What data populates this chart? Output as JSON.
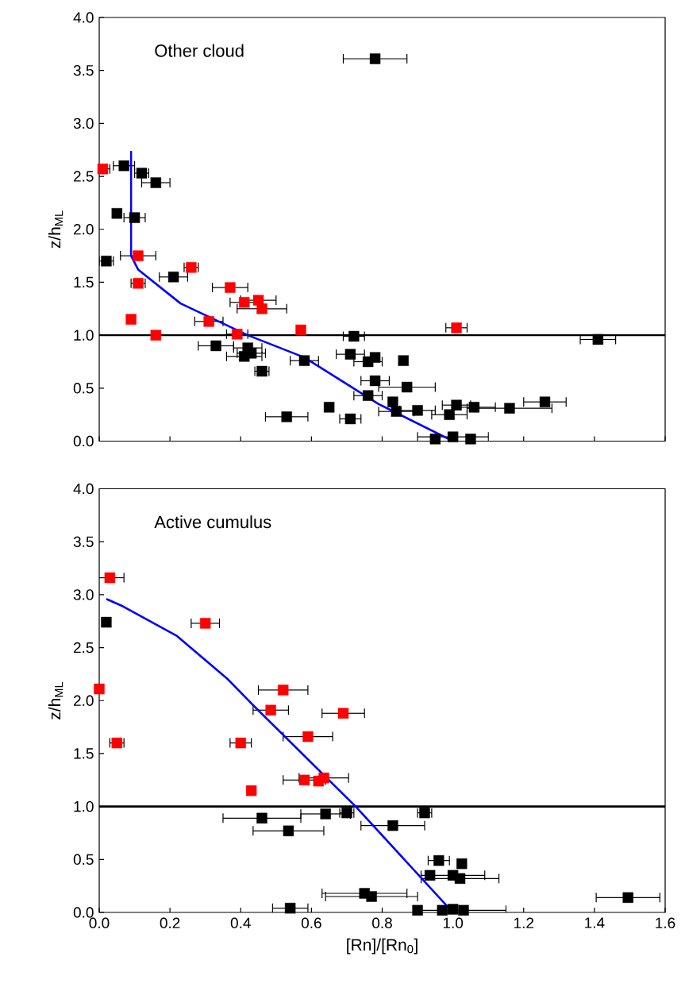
{
  "chart_data": [
    {
      "type": "scatter",
      "annotations": [
        "Other cloud"
      ],
      "ylabel": "z/h$_{ML}$",
      "tick_labels": "y",
      "xlim": [
        0,
        1.6
      ],
      "xticks": [
        {
          "value": 0,
          "label": null
        },
        {
          "value": 0.2,
          "label": null
        },
        {
          "value": 0.4,
          "label": null
        },
        {
          "value": 0.6,
          "label": null
        },
        {
          "value": 0.8,
          "label": null
        },
        {
          "value": 1.0,
          "label": null
        },
        {
          "value": 1.2,
          "label": null
        },
        {
          "value": 1.4,
          "label": null
        },
        {
          "value": 1.6,
          "label": null
        }
      ],
      "ylim": [
        0,
        4
      ],
      "yticks": [
        {
          "value": 0,
          "label": "0.0"
        },
        {
          "value": 0.5,
          "label": "0.5"
        },
        {
          "value": 1.0,
          "label": "1.0"
        },
        {
          "value": 1.5,
          "label": "1.5"
        },
        {
          "value": 2.0,
          "label": "2.0"
        },
        {
          "value": 2.5,
          "label": "2.5"
        },
        {
          "value": 3.0,
          "label": "3.0"
        },
        {
          "value": 3.5,
          "label": "3.5"
        },
        {
          "value": 4.0,
          "label": "4.0"
        }
      ],
      "ref_lines": [
        {
          "axis": "y",
          "value": 1.0,
          "color": "#000000"
        }
      ],
      "series": [
        {
          "type": "scatter",
          "marker": "square",
          "color": "#000000",
          "x": [
            0.78,
            0.07,
            0.12,
            0.16,
            0.05,
            0.1,
            0.02,
            0.21,
            0.33,
            0.42,
            0.41,
            0.43,
            0.46,
            0.58,
            0.53,
            0.65,
            0.71,
            0.72,
            0.71,
            0.76,
            0.78,
            0.78,
            0.76,
            1.41,
            0.86,
            0.87,
            1.26,
            1.16,
            1.06,
            1.01,
            0.9,
            0.83,
            0.84,
            0.99,
            0.95,
            1.0,
            1.05
          ],
          "values": [
            3.61,
            2.6,
            2.53,
            2.44,
            2.15,
            2.11,
            1.7,
            1.55,
            0.9,
            0.88,
            0.8,
            0.83,
            0.66,
            0.76,
            0.23,
            0.32,
            0.21,
            0.99,
            0.82,
            0.75,
            0.79,
            0.57,
            0.43,
            0.96,
            0.76,
            0.51,
            0.37,
            0.31,
            0.32,
            0.34,
            0.29,
            0.37,
            0.28,
            0.25,
            0.02,
            0.04,
            0.02
          ],
          "xerrors": [
            0.09,
            0.03,
            0.02,
            0.04,
            null,
            0.03,
            0.02,
            0.04,
            0.05,
            0.04,
            0.05,
            0.04,
            0.02,
            0.04,
            0.06,
            null,
            0.03,
            0.03,
            0.04,
            0.04,
            null,
            0.04,
            0.04,
            0.05,
            null,
            0.08,
            0.06,
            0.12,
            0.06,
            0.04,
            0.05,
            null,
            0.05,
            0.05,
            null,
            0.1,
            null
          ]
        },
        {
          "type": "scatter",
          "marker": "square",
          "color": "#ff0000",
          "x": [
            0.01,
            0.11,
            0.26,
            0.11,
            0.37,
            0.41,
            0.45,
            0.46,
            0.09,
            0.31,
            0.16,
            0.39,
            0.57,
            1.01
          ],
          "values": [
            2.57,
            1.75,
            1.64,
            1.49,
            1.45,
            1.31,
            1.33,
            1.25,
            1.15,
            1.13,
            1.0,
            1.01,
            1.05,
            1.07
          ],
          "xerrors": [
            0.02,
            0.05,
            0.02,
            0.02,
            0.05,
            0.04,
            0.05,
            0.07,
            null,
            0.04,
            null,
            0.03,
            null,
            0.03
          ]
        },
        {
          "type": "line",
          "marker": "none",
          "color": "#0000ff",
          "x": [
            1.0,
            0.79,
            0.58,
            0.42,
            0.23,
            0.11,
            0.09,
            0.09
          ],
          "values": [
            0.0,
            0.35,
            0.79,
            1.0,
            1.3,
            1.62,
            1.75,
            2.74
          ]
        }
      ]
    },
    {
      "type": "scatter",
      "annotations": [
        "Active cumulus"
      ],
      "ylabel": "z/h$_{ML}$",
      "xlabel": "[Rn]/[Rn$_{0}$]",
      "xlim": [
        0,
        1.6
      ],
      "xticks": [
        {
          "value": 0,
          "label": "0.0"
        },
        {
          "value": 0.2,
          "label": "0.2"
        },
        {
          "value": 0.4,
          "label": "0.4"
        },
        {
          "value": 0.6,
          "label": "0.6"
        },
        {
          "value": 0.8,
          "label": "0.8"
        },
        {
          "value": 1.0,
          "label": "1.0"
        },
        {
          "value": 1.2,
          "label": "1.2"
        },
        {
          "value": 1.4,
          "label": "1.4"
        },
        {
          "value": 1.6,
          "label": "1.6"
        }
      ],
      "ylim": [
        0,
        4
      ],
      "yticks": [
        {
          "value": 0,
          "label": "0.0"
        },
        {
          "value": 0.5,
          "label": "0.5"
        },
        {
          "value": 1.0,
          "label": "1.0"
        },
        {
          "value": 1.5,
          "label": "1.5"
        },
        {
          "value": 2.0,
          "label": "2.0"
        },
        {
          "value": 2.5,
          "label": "2.5"
        },
        {
          "value": 3.0,
          "label": "3.0"
        },
        {
          "value": 3.5,
          "label": "3.5"
        },
        {
          "value": 4.0,
          "label": "4.0"
        }
      ],
      "ref_lines": [
        {
          "axis": "y",
          "value": 1.0,
          "color": "#000000"
        }
      ],
      "series": [
        {
          "type": "scatter",
          "marker": "square",
          "color": "#000000",
          "x": [
            0.02,
            0.92,
            0.7,
            0.64,
            0.46,
            0.83,
            0.535,
            0.96,
            1.025,
            0.935,
            1.0,
            1.02,
            0.75,
            0.77,
            0.54,
            0.9,
            0.97,
            1.0,
            1.03,
            1.495
          ],
          "values": [
            2.74,
            0.94,
            0.94,
            0.93,
            0.89,
            0.82,
            0.77,
            0.49,
            0.46,
            0.35,
            0.35,
            0.32,
            0.18,
            0.15,
            0.04,
            0.02,
            0.02,
            0.03,
            0.02,
            0.14
          ],
          "xerrors": [
            null,
            0.02,
            0.02,
            0.07,
            0.11,
            0.09,
            0.1,
            0.03,
            null,
            null,
            0.09,
            0.11,
            0.12,
            0.13,
            0.05,
            null,
            null,
            null,
            0.12,
            0.09
          ]
        },
        {
          "type": "scatter",
          "marker": "square",
          "color": "#ff0000",
          "x": [
            0.03,
            0.3,
            0.52,
            0.485,
            0.69,
            0.59,
            0.4,
            0.05,
            0.0,
            0.58,
            0.62,
            0.635,
            0.43
          ],
          "values": [
            3.16,
            2.73,
            2.1,
            1.91,
            1.88,
            1.66,
            1.6,
            1.6,
            2.11,
            1.25,
            1.24,
            1.27,
            1.15
          ],
          "xerrors": [
            0.04,
            0.04,
            0.07,
            0.05,
            0.06,
            0.07,
            0.03,
            0.02,
            null,
            0.06,
            null,
            0.07,
            null
          ]
        },
        {
          "type": "line",
          "marker": "none",
          "color": "#0000ff",
          "x": [
            1.0,
            0.725,
            0.44,
            0.364,
            0.22,
            0.067,
            0.02
          ],
          "values": [
            0.0,
            1.0,
            1.94,
            2.2,
            2.61,
            2.89,
            2.96
          ]
        }
      ]
    }
  ]
}
